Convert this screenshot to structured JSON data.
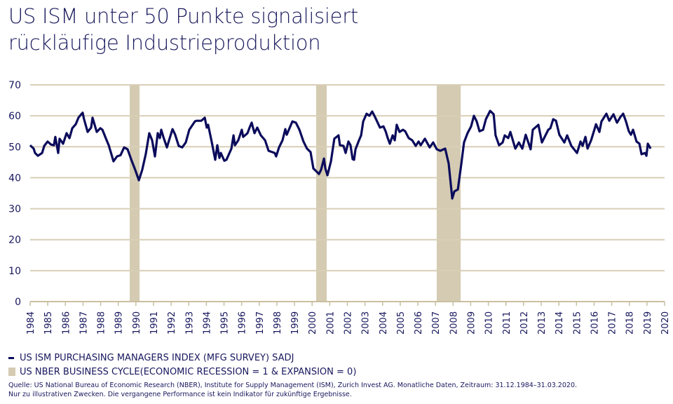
{
  "title_line1": "US ISM unter 50 Punkte signalisiert",
  "title_line2": "rückläufige Industrieproduktion",
  "chart_data": {
    "type": "line",
    "title": "US ISM unter 50 Punkte signalisiert rückläufige Industrieproduktion",
    "xlabel": "",
    "ylabel": "",
    "xlim": [
      1984,
      2020
    ],
    "ylim": [
      0,
      70
    ],
    "yticks": [
      0,
      10,
      20,
      30,
      40,
      50,
      60,
      70
    ],
    "xticks": [
      "1984",
      "1985",
      "1986",
      "1987",
      "1988",
      "1989",
      "1990",
      "1991",
      "1992",
      "1993",
      "1994",
      "1995",
      "1996",
      "1997",
      "1998",
      "1999",
      "2000",
      "2001",
      "2002",
      "2003",
      "2004",
      "2005",
      "2006",
      "2007",
      "2008",
      "2009",
      "2010",
      "2011",
      "2012",
      "2013",
      "2014",
      "2015",
      "2016",
      "2017",
      "2018",
      "2019",
      "2020"
    ],
    "grid": true,
    "legend_position": "bottom-left",
    "series": [
      {
        "name": "US ISM PURCHASING MANAGERS INDEX (MFG SURVEY) SADJ",
        "color": "#0b0b5c",
        "x": [
          1984.0,
          1984.2,
          1984.28,
          1984.44,
          1984.68,
          1984.8,
          1984.99,
          1985.19,
          1985.35,
          1985.43,
          1985.59,
          1985.67,
          1985.87,
          1986.07,
          1986.23,
          1986.39,
          1986.59,
          1986.74,
          1986.9,
          1986.98,
          1987.06,
          1987.26,
          1987.46,
          1987.54,
          1987.78,
          1987.98,
          1988.1,
          1988.34,
          1988.46,
          1988.73,
          1988.93,
          1989.13,
          1989.33,
          1989.53,
          1989.73,
          1989.97,
          1990.17,
          1990.36,
          1990.56,
          1990.76,
          1990.92,
          1991.08,
          1991.24,
          1991.36,
          1991.44,
          1991.56,
          1991.76,
          1991.92,
          1992.08,
          1992.23,
          1992.43,
          1992.63,
          1992.83,
          1993.03,
          1993.35,
          1993.43,
          1993.71,
          1993.91,
          1994.02,
          1994.1,
          1994.3,
          1994.5,
          1994.62,
          1994.74,
          1994.82,
          1995.02,
          1995.14,
          1995.42,
          1995.54,
          1995.62,
          1995.81,
          1996.01,
          1996.09,
          1996.33,
          1996.45,
          1996.57,
          1996.73,
          1996.89,
          1997.09,
          1997.33,
          1997.53,
          1997.88,
          1997.96,
          1998.12,
          1998.32,
          1998.48,
          1998.56,
          1998.72,
          1998.88,
          1999.08,
          1999.28,
          1999.51,
          1999.71,
          1999.91,
          2000.07,
          2000.27,
          2000.39,
          2000.51,
          2000.67,
          2000.75,
          2000.87,
          2001.07,
          2001.26,
          2001.5,
          2001.58,
          2001.78,
          2001.9,
          2002.06,
          2002.18,
          2002.3,
          2002.38,
          2002.46,
          2002.66,
          2002.78,
          2002.9,
          2003.09,
          2003.25,
          2003.41,
          2003.57,
          2003.85,
          2004.05,
          2004.17,
          2004.29,
          2004.41,
          2004.57,
          2004.69,
          2004.8,
          2004.96,
          2005.16,
          2005.28,
          2005.48,
          2005.68,
          2005.88,
          2006.04,
          2006.16,
          2006.4,
          2006.67,
          2006.87,
          2007.07,
          2007.27,
          2007.55,
          2007.75,
          2007.95,
          2008.07,
          2008.27,
          2008.47,
          2008.62,
          2008.82,
          2009.02,
          2009.18,
          2009.34,
          2009.5,
          2009.7,
          2009.86,
          2010.1,
          2010.3,
          2010.41,
          2010.61,
          2010.81,
          2010.93,
          2011.13,
          2011.25,
          2011.53,
          2011.73,
          2011.93,
          2012.12,
          2012.4,
          2012.52,
          2012.84,
          2013.04,
          2013.4,
          2013.52,
          2013.68,
          2013.84,
          2014.03,
          2014.31,
          2014.47,
          2014.71,
          2015.03,
          2015.23,
          2015.35,
          2015.51,
          2015.63,
          2015.83,
          2016.11,
          2016.3,
          2016.42,
          2016.7,
          2016.86,
          2017.1,
          2017.3,
          2017.49,
          2017.65,
          2017.81,
          2017.97,
          2018.09,
          2018.21,
          2018.41,
          2018.57,
          2018.69,
          2018.89,
          2018.97,
          2019.05,
          2019.21
        ],
        "y": [
          50.5,
          49.4,
          48.0,
          47.1,
          48.0,
          50.3,
          51.7,
          50.7,
          50.5,
          53.2,
          48.0,
          52.6,
          51.0,
          54.4,
          52.8,
          56.0,
          57.3,
          59.4,
          60.5,
          61.0,
          58.9,
          54.8,
          56.2,
          59.4,
          54.8,
          56.0,
          55.5,
          52.1,
          50.5,
          45.3,
          46.9,
          47.3,
          49.8,
          49.2,
          46.0,
          42.4,
          39.2,
          42.6,
          47.6,
          54.4,
          52.1,
          46.9,
          54.4,
          52.8,
          55.5,
          53.2,
          49.8,
          52.8,
          55.7,
          53.9,
          50.3,
          49.8,
          51.4,
          55.5,
          58.2,
          58.4,
          58.4,
          59.4,
          56.2,
          57.1,
          51.7,
          45.8,
          50.5,
          46.4,
          48.0,
          45.5,
          45.8,
          49.4,
          53.7,
          50.5,
          52.1,
          55.5,
          53.2,
          54.4,
          56.2,
          57.8,
          54.4,
          56.2,
          53.7,
          52.1,
          48.7,
          48.0,
          46.9,
          49.8,
          52.1,
          55.7,
          53.9,
          56.0,
          58.2,
          57.8,
          55.5,
          51.7,
          49.4,
          48.3,
          43.0,
          41.9,
          41.2,
          42.6,
          46.2,
          43.0,
          40.8,
          45.3,
          52.6,
          53.7,
          50.5,
          50.3,
          48.0,
          51.7,
          50.5,
          46.0,
          45.8,
          49.2,
          52.1,
          53.7,
          58.2,
          60.7,
          60.0,
          61.4,
          59.6,
          56.2,
          56.6,
          55.0,
          52.8,
          51.0,
          53.7,
          52.1,
          57.1,
          54.8,
          55.5,
          55.0,
          52.8,
          52.1,
          50.3,
          51.7,
          50.5,
          52.6,
          49.8,
          51.4,
          49.2,
          48.7,
          49.4,
          44.6,
          33.3,
          35.6,
          36.2,
          44.6,
          51.4,
          54.4,
          56.6,
          60.0,
          58.2,
          55.0,
          55.5,
          58.9,
          61.6,
          60.5,
          53.7,
          50.5,
          51.4,
          53.7,
          52.8,
          54.8,
          49.4,
          51.4,
          49.4,
          53.9,
          49.2,
          55.5,
          57.1,
          51.4,
          55.5,
          56.0,
          58.9,
          58.4,
          53.9,
          51.4,
          53.7,
          50.3,
          48.0,
          51.7,
          50.3,
          53.2,
          49.4,
          52.1,
          57.3,
          54.8,
          58.2,
          60.7,
          58.4,
          60.5,
          57.8,
          59.6,
          60.7,
          58.2,
          55.0,
          53.9,
          55.5,
          51.7,
          51.0,
          47.6,
          48.0,
          47.1,
          51.0,
          49.4
        ]
      },
      {
        "name": "US NBER BUSINESS CYCLE(ECONOMIC RECESSION = 1 & EXPANSION = 0)",
        "color": "#d4cbb2",
        "type": "shaded-ranges",
        "ranges": [
          [
            1989.65,
            1990.21
          ],
          [
            2000.23,
            2000.83
          ],
          [
            2007.07,
            2008.43
          ]
        ]
      }
    ]
  },
  "legend": {
    "item1": "US ISM PURCHASING MANAGERS INDEX (MFG SURVEY) SADJ",
    "item2": "US NBER BUSINESS CYCLE(ECONOMIC RECESSION = 1 & EXPANSION = 0)"
  },
  "source_line1": "Quelle: US National Bureau of Economic Research (NBER), Institute for Supply Management (ISM), Zurich Invest AG. Monatliche Daten, Zeitraum: 31.12.1984–31.03.2020.",
  "source_line2": "Nur zu illustrativen Zwecken. Die vergangene Performance ist kein Indikator für zukünftige Ergebnisse."
}
